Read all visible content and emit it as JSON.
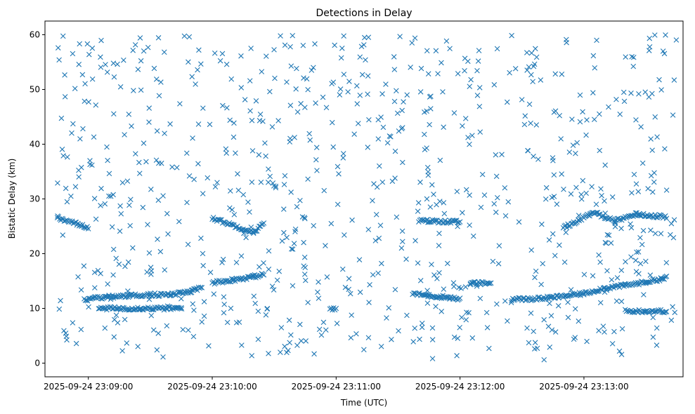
{
  "chart_data": {
    "type": "scatter",
    "title": "Detections in Delay",
    "xlabel": "Time (UTC)",
    "ylabel": "Bistatic Delay (km)",
    "x_ticks": [
      "2025-09-24 23:09:00",
      "2025-09-24 23:10:00",
      "2025-09-24 23:11:00",
      "2025-09-24 23:12:00",
      "2025-09-24 23:13:00"
    ],
    "y_ticks": [
      0,
      10,
      20,
      30,
      40,
      50,
      60
    ],
    "xlim": [
      "2025-09-24 23:08:39",
      "2025-09-24 23:13:48"
    ],
    "ylim": [
      -2.5,
      62.5
    ],
    "grid": false,
    "marker": "x",
    "color": "#1f77b4",
    "series": [
      {
        "points_note": "",
        "tracks": [
          {
            "x": [
              "2025-09-24 23:08:58",
              "2025-09-24 23:09:10",
              "2025-09-24 23:09:20",
              "2025-09-24 23:09:30",
              "2025-09-24 23:09:40",
              "2025-09-24 23:09:50",
              "2025-09-24 23:09:55"
            ],
            "y": [
              11.6,
              12.1,
              12.3,
              12.5,
              12.5,
              13.1,
              13.9
            ]
          },
          {
            "x": [
              "2025-09-24 23:10:00",
              "2025-09-24 23:10:10",
              "2025-09-24 23:10:20",
              "2025-09-24 23:10:25"
            ],
            "y": [
              14.7,
              15.2,
              15.8,
              16.2
            ]
          },
          {
            "x": [
              "2025-09-24 23:11:37",
              "2025-09-24 23:11:45",
              "2025-09-24 23:11:55",
              "2025-09-24 23:12:00"
            ],
            "y": [
              12.7,
              12.3,
              12.0,
              11.6
            ]
          },
          {
            "x": [
              "2025-09-24 23:12:05",
              "2025-09-24 23:12:15"
            ],
            "y": [
              14.6,
              14.6
            ]
          },
          {
            "x": [
              "2025-09-24 23:12:25",
              "2025-09-24 23:12:35",
              "2025-09-24 23:12:45",
              "2025-09-24 23:13:00",
              "2025-09-24 23:13:10",
              "2025-09-24 23:13:20",
              "2025-09-24 23:13:30",
              "2025-09-24 23:13:40"
            ],
            "y": [
              11.7,
              11.7,
              12.0,
              12.7,
              13.7,
              14.2,
              14.8,
              15.6
            ]
          },
          {
            "x": [
              "2025-09-24 23:09:05",
              "2025-09-24 23:09:25",
              "2025-09-24 23:09:45"
            ],
            "y": [
              10.0,
              10.0,
              10.0
            ]
          },
          {
            "x": [
              "2025-09-24 23:10:57",
              "2025-09-24 23:11:00"
            ],
            "y": [
              10.0,
              10.0
            ]
          },
          {
            "x": [
              "2025-09-24 23:13:20",
              "2025-09-24 23:13:30",
              "2025-09-24 23:13:40"
            ],
            "y": [
              9.5,
              9.5,
              9.5
            ]
          },
          {
            "x": [
              "2025-09-24 23:08:45",
              "2025-09-24 23:09:00"
            ],
            "y": [
              26.5,
              24.8
            ]
          },
          {
            "x": [
              "2025-09-24 23:10:00",
              "2025-09-24 23:10:20",
              "2025-09-24 23:10:25"
            ],
            "y": [
              26.5,
              23.9,
              25.5
            ]
          },
          {
            "x": [
              "2025-09-24 23:11:40",
              "2025-09-24 23:12:00"
            ],
            "y": [
              26.0,
              25.8
            ]
          },
          {
            "x": [
              "2025-09-24 23:12:50",
              "2025-09-24 23:13:05",
              "2025-09-24 23:13:15",
              "2025-09-24 23:13:25",
              "2025-09-24 23:13:40"
            ],
            "y": [
              24.7,
              27.5,
              26.0,
              27.2,
              26.7
            ]
          }
        ]
      }
    ]
  }
}
